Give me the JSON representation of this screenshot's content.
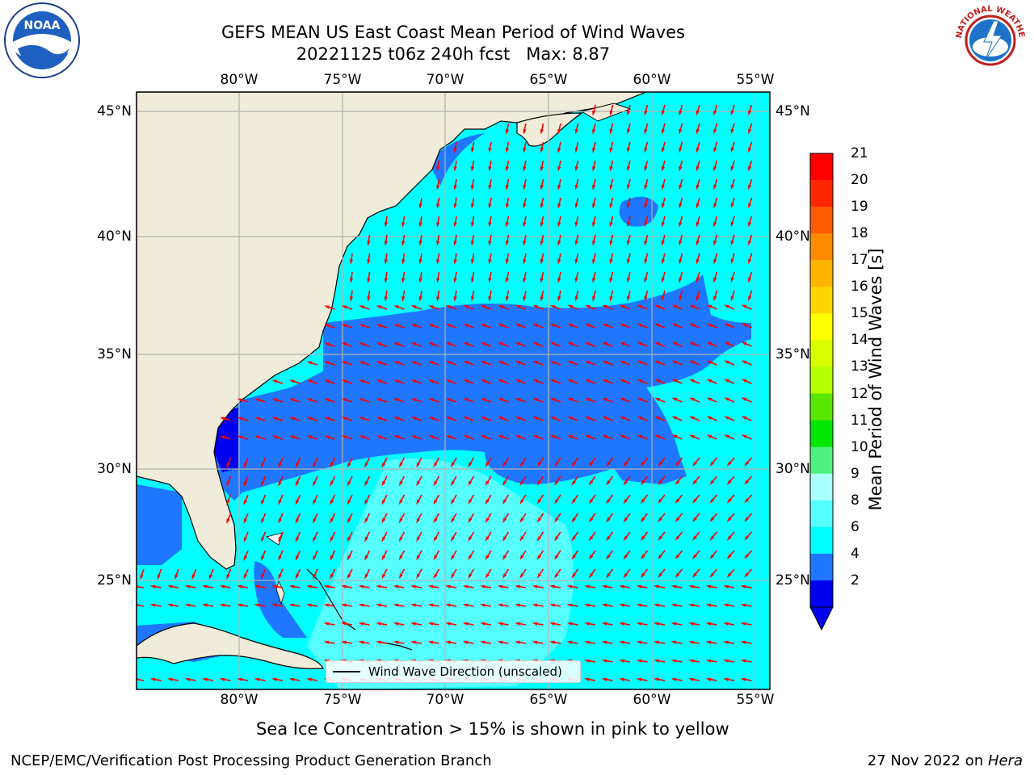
{
  "title": {
    "line1": "GEFS MEAN US East Coast Mean Period of Wind Waves",
    "line2": "20221125 t06z 240h fcst   Max: 8.87"
  },
  "map": {
    "lon_labels": [
      "80°W",
      "75°W",
      "70°W",
      "65°W",
      "60°W",
      "55°W"
    ],
    "lat_labels": [
      "45°N",
      "40°N",
      "35°N",
      "30°N",
      "25°N"
    ],
    "colors": {
      "land": "#efecd9",
      "ocean_4_6": "#00ffff",
      "ocean_2_4": "#1f77ff",
      "ocean_0_2": "#0000ee",
      "ocean_6_8": "#55ffff",
      "arrow": "#ff0000",
      "grid": "#b0b0b0"
    },
    "legend_label": "Wind Wave Direction (unscaled)",
    "ice_note": "Sea Ice Concentration > 15% is shown in pink to yellow"
  },
  "colorbar": {
    "label": "Mean Period of Wind Waves [s]",
    "ticks": [
      "21",
      "20",
      "19",
      "18",
      "17",
      "16",
      "15",
      "14",
      "13",
      "12",
      "11",
      "10",
      "9",
      "8",
      "6",
      "4",
      "2"
    ],
    "colors": [
      "#ff0000",
      "#ff2800",
      "#ff5a00",
      "#ff8c00",
      "#ffb400",
      "#ffd700",
      "#ffff00",
      "#d7ff00",
      "#b4ff00",
      "#5ae600",
      "#00e600",
      "#50f080",
      "#aaffff",
      "#55ffff",
      "#00ffff",
      "#1f77ff",
      "#0000ee"
    ]
  },
  "logos": {
    "left": "NOAA",
    "right": "NATIONAL WEATHER SERVICE"
  },
  "footer": {
    "left": "NCEP/EMC/Verification Post Processing Product Generation Branch",
    "right_prefix": "27 Nov 2022 on ",
    "right_host": "Hera"
  }
}
